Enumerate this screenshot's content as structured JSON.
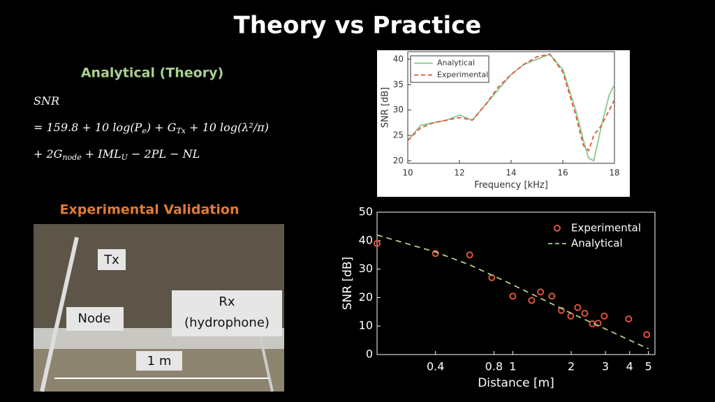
{
  "header": {
    "title": "Theory vs Practice"
  },
  "theory": {
    "heading": "Analytical (Theory)",
    "formula": [
      [
        "SNR"
      ],
      [
        "= 159.8 + 10 log(P",
        "e",
        ") + G",
        "Tx",
        " + 10 log(λ²/π)"
      ],
      [
        "+ 2G",
        "node",
        " + IML",
        "U",
        " − 2PL − NL"
      ]
    ]
  },
  "validation": {
    "heading": "Experimental Validation",
    "photo_labels": {
      "tx": "Tx",
      "node": "Node",
      "rx": [
        "Rx",
        "(hydrophone)"
      ],
      "scale": "1 m"
    }
  },
  "chart_data": [
    {
      "type": "line",
      "xlabel": "Frequency [kHz]",
      "ylabel": "SNR [dB]",
      "xlim": [
        10,
        18
      ],
      "ylim": [
        19.5,
        41.5
      ],
      "xticks": [
        10,
        12,
        14,
        16,
        18
      ],
      "yticks": [
        20,
        25,
        30,
        35,
        40
      ],
      "legend": "upper-left",
      "x": [
        10,
        10.5,
        11,
        11.5,
        12,
        12.5,
        13,
        13.5,
        14,
        14.5,
        15,
        15.5,
        16,
        16.5,
        16.8,
        17,
        17.2,
        17.5,
        17.8,
        18
      ],
      "series": [
        {
          "name": "Analytical",
          "color": "#86c986",
          "style": "solid",
          "values": [
            24,
            27,
            27.5,
            28,
            29,
            28,
            31,
            34,
            37,
            39,
            40,
            41,
            38,
            30,
            24,
            20.5,
            20,
            27,
            33,
            35
          ]
        },
        {
          "name": "Experimental",
          "color": "#e0533a",
          "style": "dashed",
          "values": [
            24,
            26.5,
            27.5,
            28,
            28.5,
            28,
            31,
            34.5,
            37,
            39,
            40.5,
            41,
            37.5,
            29,
            23,
            22,
            25,
            27,
            30,
            32
          ]
        }
      ]
    },
    {
      "type": "scatter",
      "xlabel": "Distance [m]",
      "ylabel": "SNR [dB]",
      "xscale": "log",
      "xlim": [
        0.2,
        5.4
      ],
      "ylim": [
        0,
        50
      ],
      "xticks": [
        0.4,
        0.8,
        1,
        2,
        3,
        4,
        5
      ],
      "yticks": [
        0,
        10,
        20,
        30,
        40,
        50
      ],
      "legend": "upper-right",
      "series": [
        {
          "name": "Experimental",
          "color": "#e0533a",
          "style": "markers",
          "x": [
            0.2,
            0.4,
            0.6,
            0.78,
            1,
            1.25,
            1.39,
            1.59,
            1.78,
            1.99,
            2.16,
            2.35,
            2.57,
            2.75,
            2.96,
            3.95,
            4.9
          ],
          "values": [
            39,
            35.5,
            35,
            27,
            20.5,
            19,
            22,
            20.5,
            15.5,
            13.5,
            16.5,
            14.5,
            10.8,
            11,
            13.5,
            12.5,
            7
          ]
        },
        {
          "name": "Analytical",
          "color": "#a9d18e",
          "style": "dashed",
          "x": [
            0.2,
            0.4,
            0.6,
            1,
            2,
            3,
            5
          ],
          "values": [
            42,
            36,
            31.5,
            24.5,
            14.5,
            9,
            2
          ]
        }
      ]
    }
  ]
}
